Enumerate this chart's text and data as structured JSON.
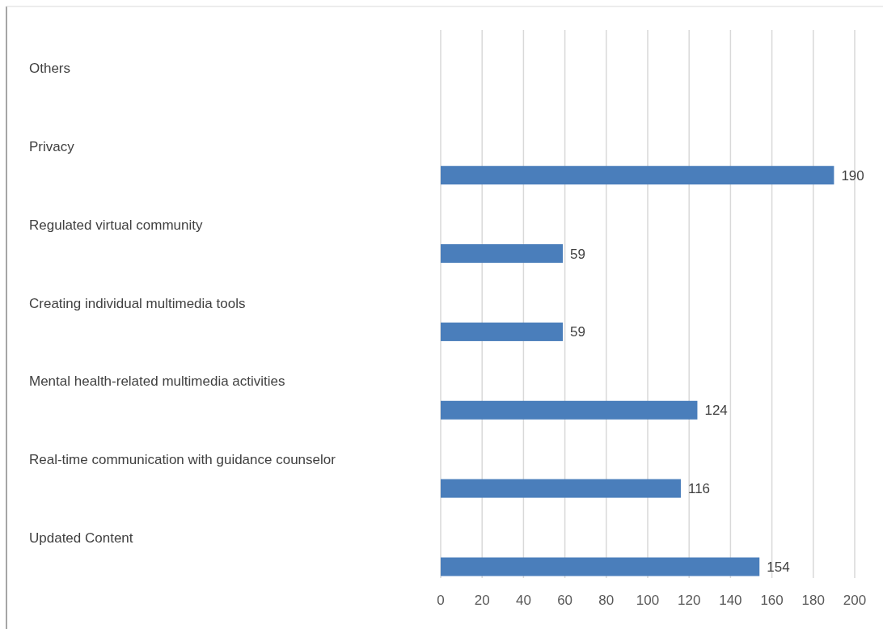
{
  "chart_data": {
    "type": "bar",
    "orientation": "horizontal",
    "categories": [
      "Others",
      "Privacy",
      "Regulated virtual community",
      "Creating individual multimedia tools",
      "Mental health-related multimedia activities",
      "Real-time communication with guidance counselor",
      "Updated Content"
    ],
    "values": [
      null,
      190,
      59,
      59,
      124,
      116,
      154
    ],
    "color": "#4a7ebb",
    "xlim": [
      0,
      200
    ],
    "xticks": [
      0,
      20,
      40,
      60,
      80,
      100,
      120,
      140,
      160,
      180,
      200
    ],
    "grid": "x",
    "data_labels": true
  }
}
